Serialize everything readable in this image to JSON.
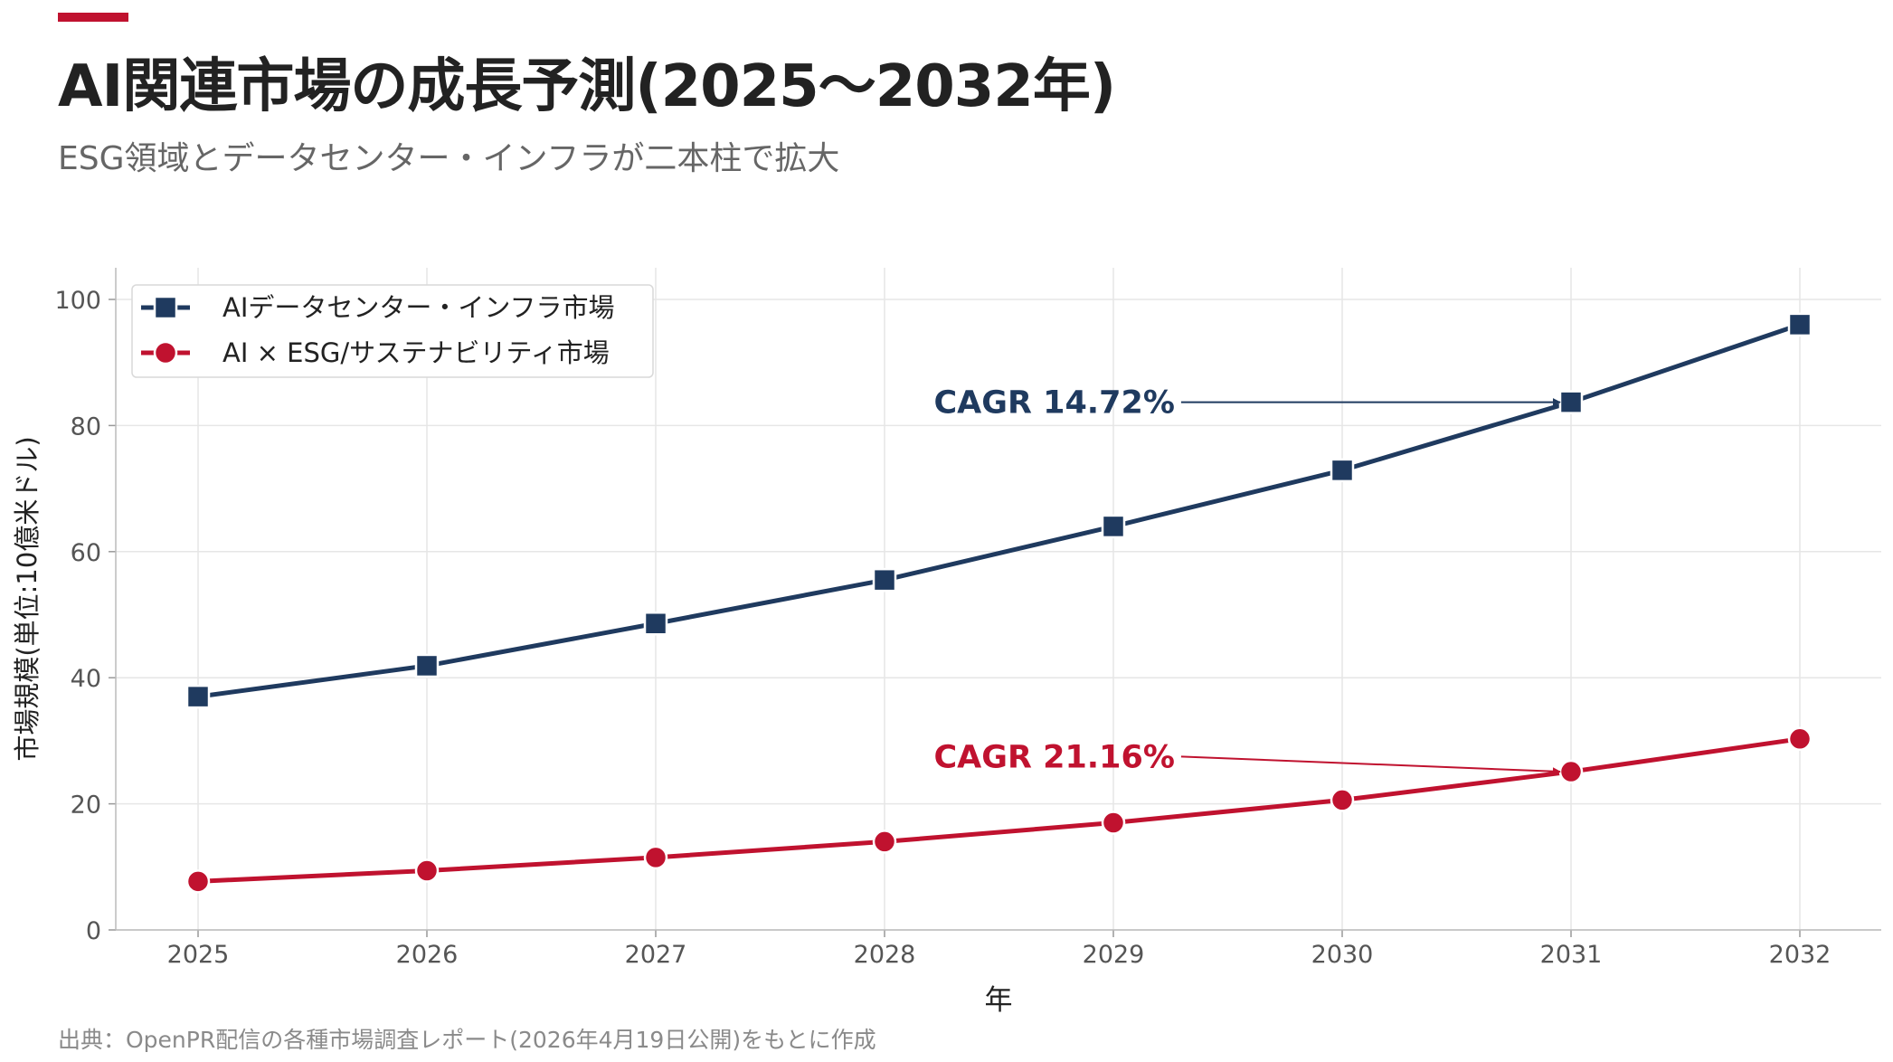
{
  "header": {
    "title": "AI関連市場の成長予測(2025〜2032年)",
    "subtitle": "ESG領域とデータセンター・インフラが二本柱で拡大"
  },
  "footer": {
    "source": "出典：OpenPR配信の各種市場調査レポート(2026年4月19日公開)をもとに作成"
  },
  "colors": {
    "accent": "#c0122f",
    "navy": "#1f3a5f",
    "red": "#c0122f"
  },
  "chart_data": {
    "type": "line",
    "xlabel": "年",
    "ylabel": "市場規模(単位:10億米ドル)",
    "ylim": [
      0,
      105
    ],
    "yticks": [
      0,
      20,
      40,
      60,
      80,
      100
    ],
    "x": [
      "2025",
      "2026",
      "2027",
      "2028",
      "2029",
      "2030",
      "2031",
      "2032"
    ],
    "grid": true,
    "legend_position": "top-left",
    "series": [
      {
        "name": "AIデータセンター・インフラ市場",
        "color": "#1f3a5f",
        "marker": "square",
        "values": [
          37.0,
          41.9,
          48.6,
          55.5,
          64.0,
          72.9,
          83.7,
          96.0
        ]
      },
      {
        "name": "AI × ESG/サステナビリティ市場",
        "color": "#c0122f",
        "marker": "circle",
        "values": [
          7.7,
          9.4,
          11.5,
          14.0,
          17.0,
          20.6,
          25.1,
          30.3
        ]
      }
    ],
    "annotations": [
      {
        "text": "CAGR 14.72%",
        "series": 0,
        "point_x": "2031",
        "point_y": 83.7,
        "label_x": "2028.3",
        "label_y": 83.7,
        "color": "#1f3a5f"
      },
      {
        "text": "CAGR 21.16%",
        "series": 1,
        "point_x": "2031",
        "point_y": 25.1,
        "label_x": "2028.3",
        "label_y": 27.5,
        "color": "#c0122f"
      }
    ]
  }
}
